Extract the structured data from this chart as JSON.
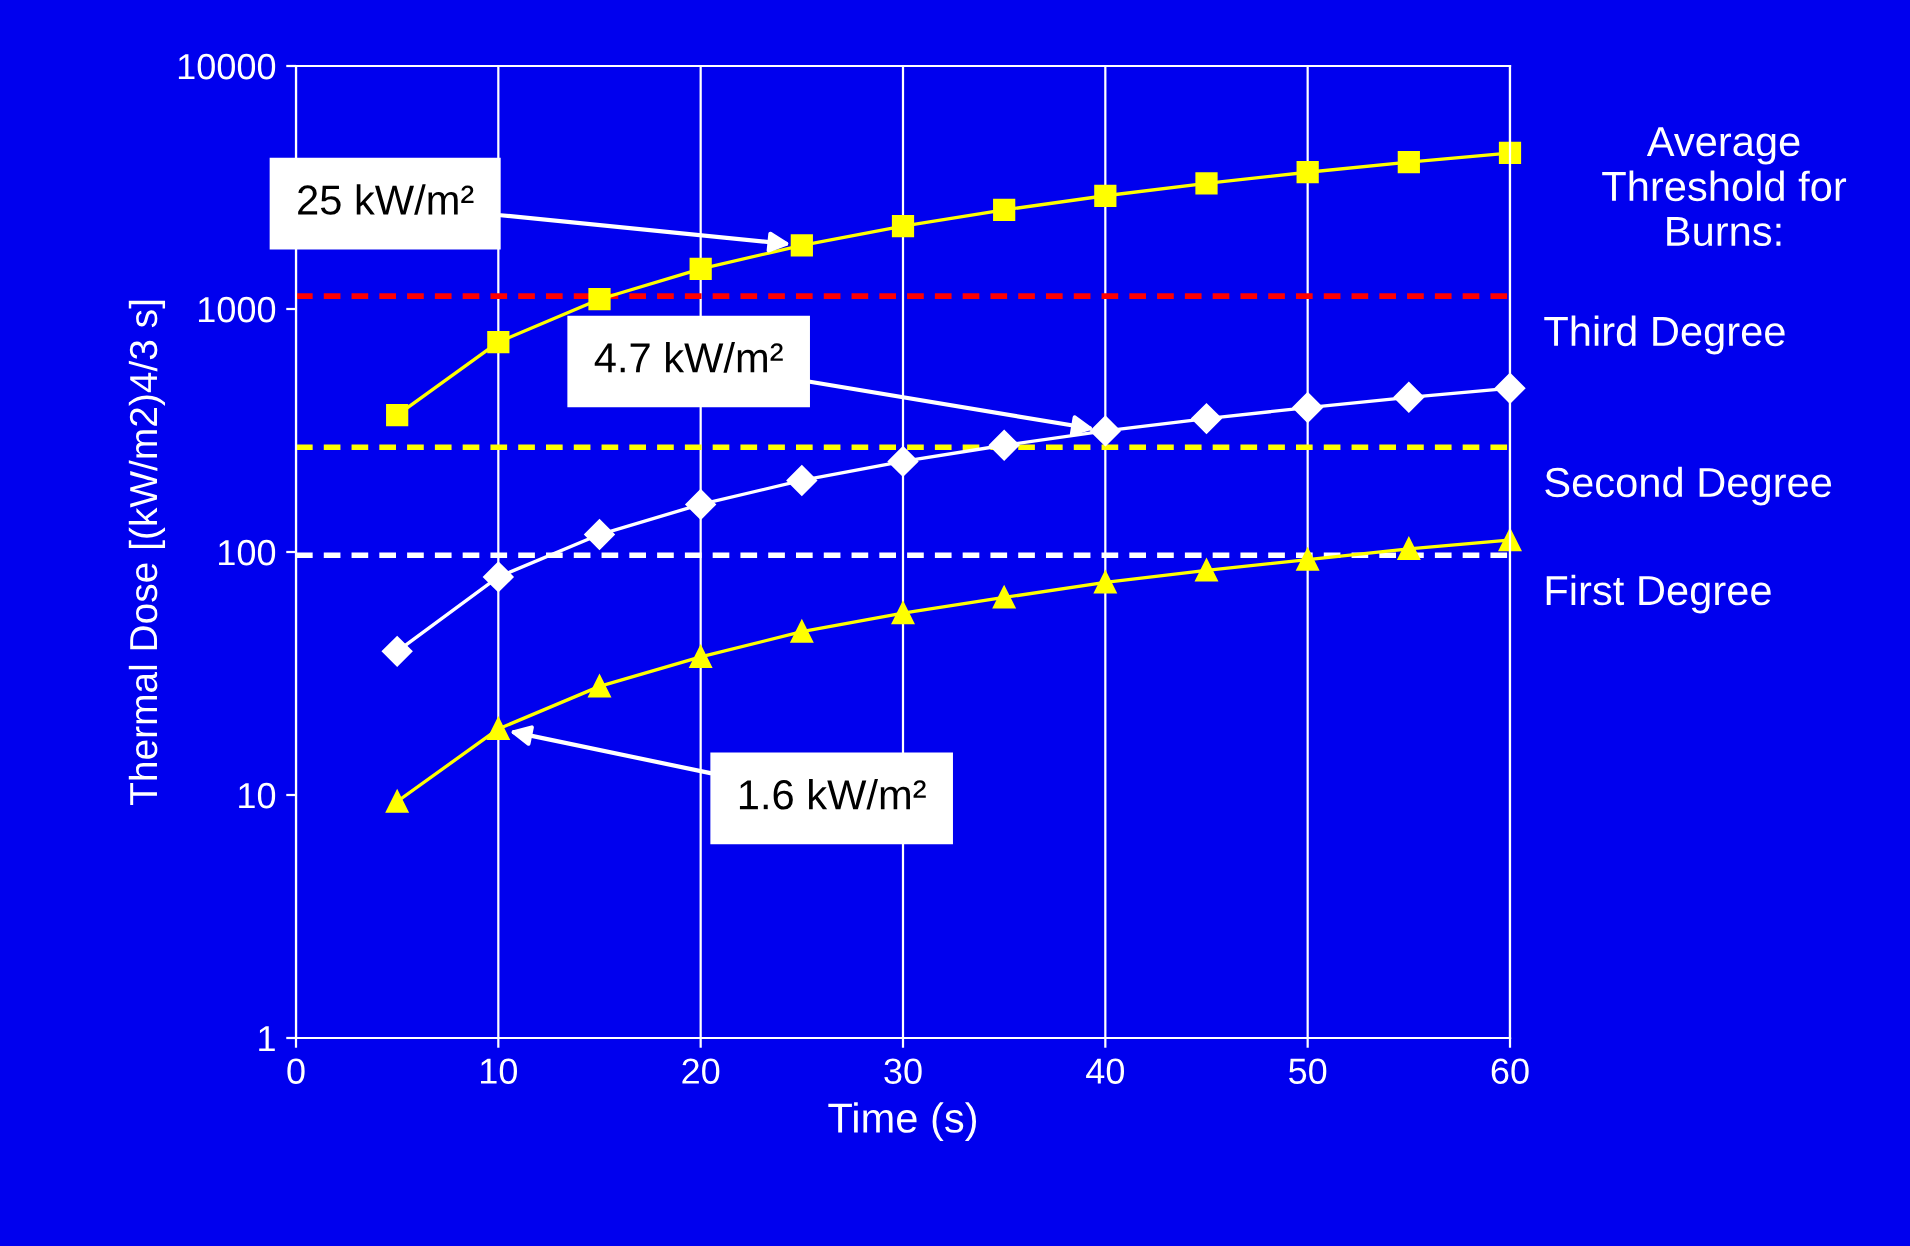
{
  "chart_data": {
    "type": "line",
    "xlabel": "Time (s)",
    "ylabel": "Thermal Dose [(kW/m2)4/3 s]",
    "x": [
      5,
      10,
      15,
      20,
      25,
      30,
      35,
      40,
      45,
      50,
      55,
      60
    ],
    "series": [
      {
        "name": "25 kW/m²",
        "color": "#ffff00",
        "marker": "square",
        "values": [
          366,
          731,
          1097,
          1462,
          1828,
          2193,
          2559,
          2924,
          3290,
          3655,
          4021,
          4386
        ]
      },
      {
        "name": "4.7 kW/m²",
        "color": "#ffffff",
        "marker": "diamond",
        "values": [
          39,
          79,
          118,
          157,
          197,
          236,
          275,
          315,
          354,
          393,
          433,
          472
        ]
      },
      {
        "name": "1.6 kW/m²",
        "color": "#ffff00",
        "marker": "triangle",
        "values": [
          9.4,
          18.7,
          28,
          37,
          47,
          56,
          65,
          75,
          84,
          93,
          103,
          112
        ]
      }
    ],
    "log": "y",
    "xlim": [
      0,
      60
    ],
    "ylim": [
      1,
      10000
    ],
    "xticks": [
      0,
      10,
      20,
      30,
      40,
      50,
      60
    ],
    "yticks": [
      1,
      10,
      100,
      1000,
      10000
    ],
    "grid": "x",
    "legend": false,
    "line_style": "solid",
    "ref_lines": [
      {
        "axis": "y",
        "value": 1130,
        "label": "Third Degree",
        "color": "#ff0000",
        "line_style": "dashed"
      },
      {
        "axis": "y",
        "value": 270,
        "label": "Second Degree",
        "color": "#ffff00",
        "line_style": "dashed"
      },
      {
        "axis": "y",
        "value": 97,
        "label": "First Degree",
        "color": "#ffffff",
        "line_style": "dashed"
      }
    ],
    "annotations": [
      "Average Threshold for Burns:"
    ]
  }
}
